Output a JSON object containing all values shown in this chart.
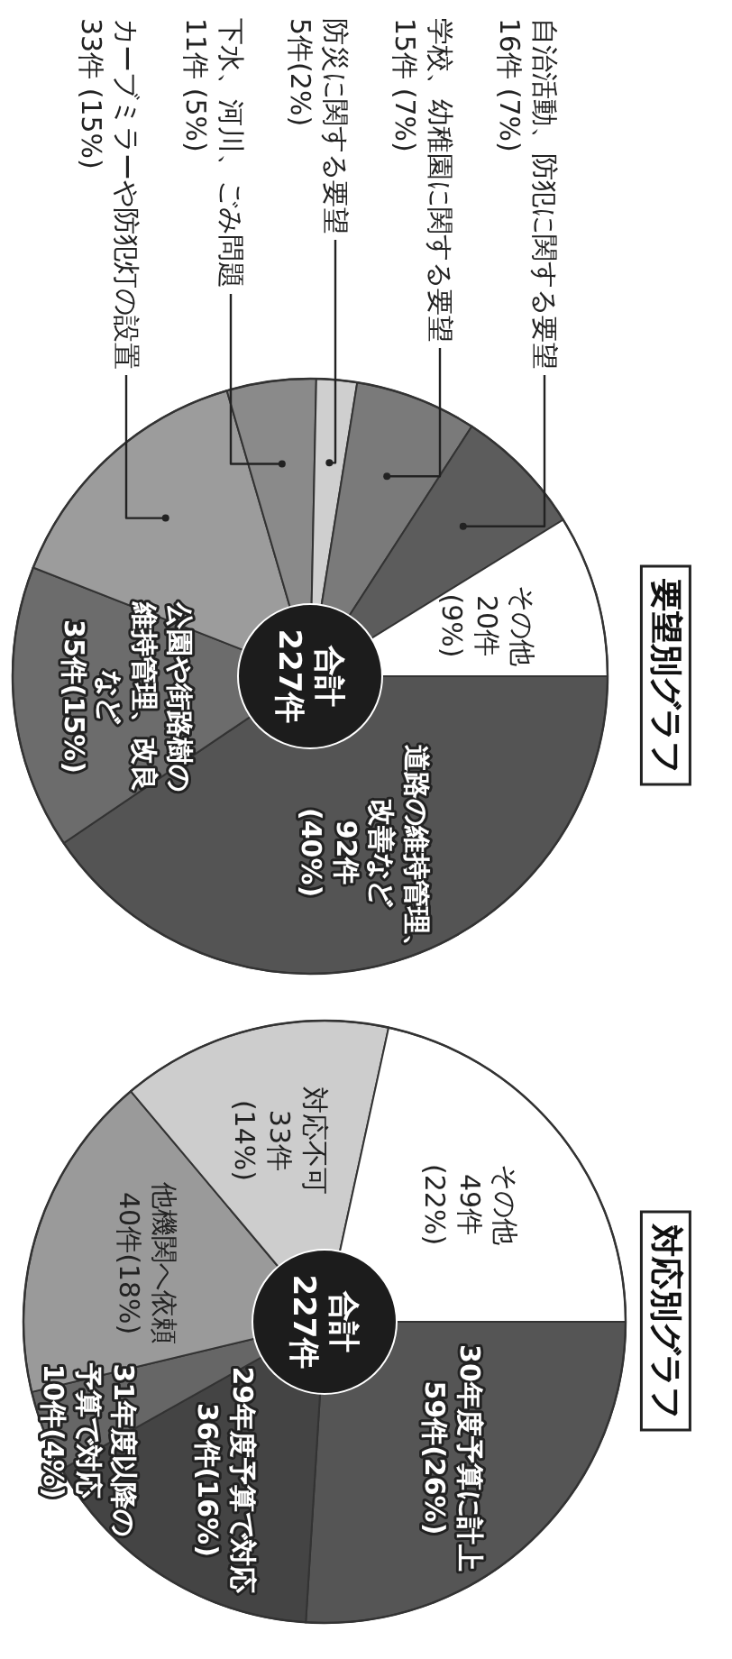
{
  "chart_data": [
    {
      "type": "donut",
      "title": "要望別グラフ",
      "annotations": [
        "合計\n227件"
      ],
      "categories": [
        "道路の維持管理、改善など",
        "公園や街路樹の維持管理、改良など",
        "カーブミラーや防犯灯の設置",
        "下水、河川、ごみ問題",
        "防災に関する要望",
        "学校、幼稚園に関する要望",
        "自治活動、防犯に関する要望",
        "その他"
      ],
      "values": [
        92,
        35,
        33,
        11,
        5,
        15,
        16,
        20
      ],
      "value_labels": [
        "92件\n(40%)",
        "35件(15%)",
        "33件 (15%)",
        "11件 (5%)",
        "5件(2%)",
        "15件 (7%)",
        "16件 (7%)",
        "20件\n(9%)"
      ],
      "colors": [
        "#545454",
        "#6c6c6c",
        "#9c9c9c",
        "#8a8a8a",
        "#cfcfcf",
        "#7a7a7a",
        "#5c5c5c",
        "#ffffff"
      ]
    },
    {
      "type": "donut",
      "title": "対応別グラフ",
      "annotations": [
        "合計\n227件"
      ],
      "categories": [
        "30年度予算に計上",
        "29年度予算で対応",
        "31年度以降の予算で対応",
        "他機関へ依頼",
        "対応不可",
        "その他"
      ],
      "values": [
        59,
        36,
        10,
        40,
        33,
        49
      ],
      "value_labels": [
        "59件(26%)",
        "36件(16%)",
        "10件(4%)",
        "40件(18%)",
        "33件\n(14%)",
        "49件\n(22%)"
      ],
      "colors": [
        "#555555",
        "#444444",
        "#666666",
        "#9a9a9a",
        "#cdcdcd",
        "#ffffff"
      ]
    }
  ]
}
